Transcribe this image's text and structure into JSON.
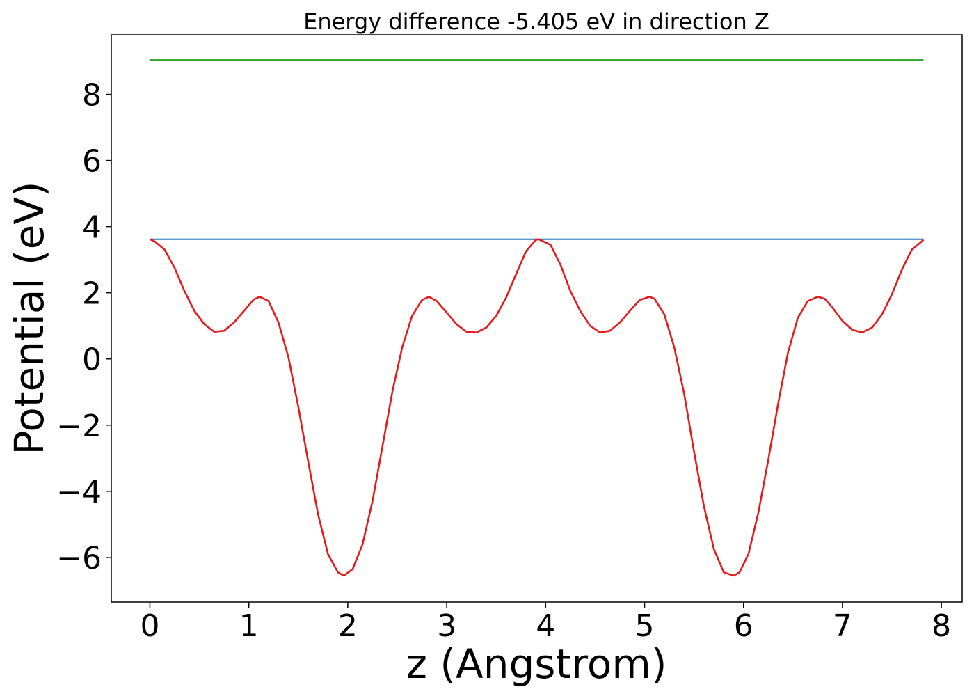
{
  "chart_data": {
    "type": "line",
    "title": "Energy difference -5.405 eV in direction Z",
    "xlabel": "z (Angstrom)",
    "ylabel": "Potential (eV)",
    "xlim": [
      -0.39,
      8.21
    ],
    "ylim": [
      -7.35,
      9.8
    ],
    "xticks": [
      0,
      1,
      2,
      3,
      4,
      5,
      6,
      7,
      8
    ],
    "yticks": [
      -6,
      -4,
      -2,
      0,
      2,
      4,
      6,
      8
    ],
    "xtick_labels": [
      "0",
      "1",
      "2",
      "3",
      "4",
      "5",
      "6",
      "7",
      "8"
    ],
    "ytick_labels": [
      "−6",
      "−4",
      "−2",
      "0",
      "2",
      "4",
      "6",
      "8"
    ],
    "grid": false,
    "legend": "none",
    "series": [
      {
        "color": "#2ca02c",
        "x": [
          0,
          7.82
        ],
        "y": [
          9.04,
          9.04
        ]
      },
      {
        "color": "#1f77b4",
        "x": [
          0,
          7.82
        ],
        "y": [
          3.62,
          3.62
        ]
      },
      {
        "color": "#e41a1c",
        "x": [
          0,
          0.05,
          0.15,
          0.25,
          0.35,
          0.45,
          0.55,
          0.65,
          0.75,
          0.85,
          0.95,
          1.05,
          1.11,
          1.2,
          1.3,
          1.4,
          1.5,
          1.6,
          1.7,
          1.8,
          1.9,
          1.96,
          2.05,
          2.15,
          2.25,
          2.35,
          2.45,
          2.55,
          2.65,
          2.75,
          2.82,
          2.9,
          3.0,
          3.1,
          3.2,
          3.3,
          3.4,
          3.5,
          3.6,
          3.7,
          3.8,
          3.9,
          3.93,
          4.05,
          4.15,
          4.25,
          4.35,
          4.45,
          4.55,
          4.65,
          4.75,
          4.85,
          4.95,
          5.05,
          5.1,
          5.2,
          5.3,
          5.4,
          5.5,
          5.6,
          5.7,
          5.8,
          5.9,
          5.96,
          6.05,
          6.15,
          6.25,
          6.35,
          6.45,
          6.55,
          6.65,
          6.75,
          6.82,
          6.9,
          7.0,
          7.1,
          7.2,
          7.3,
          7.4,
          7.5,
          7.6,
          7.7,
          7.82
        ],
        "y": [
          3.62,
          3.55,
          3.3,
          2.75,
          2.05,
          1.45,
          1.05,
          0.82,
          0.85,
          1.1,
          1.45,
          1.8,
          1.88,
          1.75,
          1.1,
          0.05,
          -1.45,
          -3.1,
          -4.7,
          -5.9,
          -6.45,
          -6.55,
          -6.35,
          -5.6,
          -4.3,
          -2.65,
          -1.0,
          0.35,
          1.3,
          1.78,
          1.88,
          1.75,
          1.4,
          1.05,
          0.82,
          0.8,
          0.95,
          1.3,
          1.85,
          2.55,
          3.25,
          3.6,
          3.62,
          3.45,
          2.85,
          2.05,
          1.45,
          1.0,
          0.8,
          0.85,
          1.1,
          1.45,
          1.78,
          1.88,
          1.82,
          1.35,
          0.35,
          -1.05,
          -2.8,
          -4.45,
          -5.75,
          -6.45,
          -6.55,
          -6.45,
          -5.9,
          -4.65,
          -3.05,
          -1.35,
          0.2,
          1.25,
          1.75,
          1.88,
          1.82,
          1.55,
          1.15,
          0.88,
          0.8,
          0.95,
          1.35,
          1.95,
          2.7,
          3.3,
          3.6
        ]
      }
    ]
  }
}
